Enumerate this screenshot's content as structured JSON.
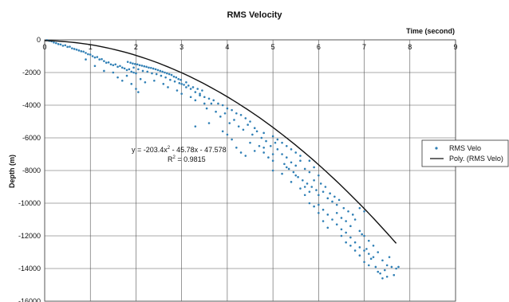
{
  "chart_data": {
    "type": "scatter",
    "title": "RMS Velocity",
    "xlabel": "Time (second)",
    "ylabel": "Depth (m)",
    "xlim": [
      0,
      9
    ],
    "ylim": [
      -16000,
      0
    ],
    "x_ticks": [
      0,
      1,
      2,
      3,
      4,
      5,
      6,
      7,
      8,
      9
    ],
    "y_ticks": [
      0,
      -2000,
      -4000,
      -6000,
      -8000,
      -10000,
      -12000,
      -14000,
      -16000
    ],
    "x_axis_position": "top",
    "grid": true,
    "legend_position": "right",
    "annotation": {
      "equation_prefix": "y = -203.4x",
      "equation_exp": "2",
      "equation_suffix": " - 45.78x - 47.578",
      "r2_prefix": "R",
      "r2_exp": "2",
      "r2_suffix": " = 0.9815"
    },
    "series": [
      {
        "name": "RMS Velo",
        "kind": "scatter",
        "color": "#2f7fb5",
        "points": [
          [
            0.05,
            -20
          ],
          [
            0.1,
            -60
          ],
          [
            0.15,
            -90
          ],
          [
            0.2,
            -160
          ],
          [
            0.25,
            -200
          ],
          [
            0.3,
            -260
          ],
          [
            0.35,
            -280
          ],
          [
            0.4,
            -360
          ],
          [
            0.45,
            -330
          ],
          [
            0.5,
            -430
          ],
          [
            0.55,
            -420
          ],
          [
            0.6,
            -520
          ],
          [
            0.65,
            -560
          ],
          [
            0.7,
            -600
          ],
          [
            0.75,
            -650
          ],
          [
            0.8,
            -700
          ],
          [
            0.85,
            -720
          ],
          [
            0.9,
            -800
          ],
          [
            0.95,
            -880
          ],
          [
            1.0,
            -900
          ],
          [
            1.05,
            -1000
          ],
          [
            1.1,
            -1080
          ],
          [
            1.15,
            -1050
          ],
          [
            1.2,
            -1200
          ],
          [
            1.25,
            -1180
          ],
          [
            1.3,
            -1300
          ],
          [
            1.35,
            -1400
          ],
          [
            1.4,
            -1380
          ],
          [
            1.45,
            -1500
          ],
          [
            1.5,
            -1550
          ],
          [
            1.55,
            -1500
          ],
          [
            1.6,
            -1650
          ],
          [
            1.65,
            -1600
          ],
          [
            1.7,
            -1700
          ],
          [
            1.75,
            -1750
          ],
          [
            1.8,
            -1850
          ],
          [
            1.85,
            -1800
          ],
          [
            1.9,
            -1950
          ],
          [
            1.95,
            -2000
          ],
          [
            2.0,
            -2050
          ],
          [
            1.82,
            -1350
          ],
          [
            1.88,
            -1400
          ],
          [
            1.93,
            -1450
          ],
          [
            1.98,
            -1480
          ],
          [
            2.03,
            -1500
          ],
          [
            2.08,
            -1550
          ],
          [
            2.13,
            -1580
          ],
          [
            2.18,
            -1620
          ],
          [
            2.23,
            -1650
          ],
          [
            2.28,
            -1700
          ],
          [
            2.33,
            -1720
          ],
          [
            2.38,
            -1760
          ],
          [
            2.43,
            -1800
          ],
          [
            2.48,
            -1850
          ],
          [
            2.53,
            -1900
          ],
          [
            2.58,
            -1950
          ],
          [
            2.63,
            -2000
          ],
          [
            2.68,
            -2050
          ],
          [
            2.73,
            -2100
          ],
          [
            2.78,
            -2150
          ],
          [
            2.83,
            -2250
          ],
          [
            2.88,
            -2300
          ],
          [
            2.93,
            -2400
          ],
          [
            2.98,
            -2450
          ],
          [
            1.95,
            -1700
          ],
          [
            2.05,
            -1800
          ],
          [
            2.15,
            -1900
          ],
          [
            2.25,
            -1950
          ],
          [
            2.35,
            -2050
          ],
          [
            2.45,
            -2100
          ],
          [
            2.55,
            -2200
          ],
          [
            2.65,
            -2300
          ],
          [
            2.75,
            -2450
          ],
          [
            2.85,
            -2550
          ],
          [
            2.95,
            -2650
          ],
          [
            3.05,
            -2750
          ],
          [
            3.15,
            -2800
          ],
          [
            3.25,
            -2900
          ],
          [
            3.35,
            -3000
          ],
          [
            3.45,
            -3100
          ],
          [
            1.6,
            -2300
          ],
          [
            1.7,
            -2500
          ],
          [
            1.9,
            -2700
          ],
          [
            2.0,
            -3000
          ],
          [
            2.1,
            -2400
          ],
          [
            2.2,
            -2600
          ],
          [
            2.4,
            -2500
          ],
          [
            2.6,
            -2700
          ],
          [
            2.7,
            -2900
          ],
          [
            2.9,
            -3100
          ],
          [
            3.0,
            -3300
          ],
          [
            3.1,
            -2600
          ],
          [
            3.2,
            -3500
          ],
          [
            3.3,
            -3700
          ],
          [
            3.4,
            -3300
          ],
          [
            3.5,
            -3900
          ],
          [
            1.3,
            -1900
          ],
          [
            1.5,
            -2000
          ],
          [
            1.1,
            -1600
          ],
          [
            0.9,
            -1200
          ],
          [
            1.8,
            -2200
          ],
          [
            2.05,
            -3200
          ],
          [
            3.0,
            -2700
          ],
          [
            3.1,
            -2900
          ],
          [
            3.2,
            -3000
          ],
          [
            3.3,
            -3200
          ],
          [
            3.4,
            -3400
          ],
          [
            3.5,
            -3500
          ],
          [
            3.6,
            -3600
          ],
          [
            3.7,
            -3700
          ],
          [
            3.8,
            -3900
          ],
          [
            3.9,
            -4000
          ],
          [
            4.0,
            -4200
          ],
          [
            4.1,
            -4300
          ],
          [
            4.2,
            -4500
          ],
          [
            4.3,
            -4600
          ],
          [
            4.4,
            -4800
          ],
          [
            4.5,
            -5000
          ],
          [
            3.55,
            -4200
          ],
          [
            3.65,
            -3900
          ],
          [
            3.75,
            -4400
          ],
          [
            3.85,
            -4700
          ],
          [
            3.95,
            -4500
          ],
          [
            4.05,
            -5100
          ],
          [
            4.15,
            -4900
          ],
          [
            4.25,
            -5300
          ],
          [
            4.35,
            -5500
          ],
          [
            4.45,
            -5200
          ],
          [
            4.55,
            -5800
          ],
          [
            4.65,
            -5600
          ],
          [
            4.75,
            -6000
          ],
          [
            4.85,
            -6200
          ],
          [
            4.95,
            -6500
          ],
          [
            5.05,
            -6300
          ],
          [
            3.3,
            -5300
          ],
          [
            3.6,
            -5100
          ],
          [
            3.9,
            -5600
          ],
          [
            4.1,
            -6100
          ],
          [
            4.2,
            -6600
          ],
          [
            4.3,
            -6900
          ],
          [
            4.4,
            -7100
          ],
          [
            4.6,
            -6800
          ],
          [
            4.0,
            -5800
          ],
          [
            4.5,
            -6300
          ],
          [
            4.7,
            -6500
          ],
          [
            4.8,
            -6900
          ],
          [
            4.9,
            -7200
          ],
          [
            5.0,
            -7400
          ],
          [
            5.1,
            -6700
          ],
          [
            5.2,
            -7000
          ],
          [
            4.6,
            -5400
          ],
          [
            4.8,
            -5700
          ],
          [
            5.0,
            -5900
          ],
          [
            5.1,
            -6100
          ],
          [
            5.2,
            -6300
          ],
          [
            5.3,
            -6500
          ],
          [
            5.4,
            -6700
          ],
          [
            5.5,
            -6900
          ],
          [
            5.3,
            -7200
          ],
          [
            5.4,
            -7500
          ],
          [
            5.5,
            -7700
          ],
          [
            5.6,
            -7400
          ],
          [
            5.7,
            -7900
          ],
          [
            5.8,
            -8100
          ],
          [
            5.9,
            -7800
          ],
          [
            6.0,
            -8300
          ],
          [
            5.25,
            -7600
          ],
          [
            5.35,
            -7900
          ],
          [
            5.45,
            -8100
          ],
          [
            5.55,
            -8400
          ],
          [
            5.65,
            -8600
          ],
          [
            5.75,
            -8800
          ],
          [
            5.85,
            -9000
          ],
          [
            5.95,
            -9200
          ],
          [
            5.6,
            -7100
          ],
          [
            5.8,
            -7400
          ],
          [
            5.9,
            -8600
          ],
          [
            6.0,
            -9500
          ],
          [
            6.1,
            -9300
          ],
          [
            6.2,
            -9700
          ],
          [
            6.3,
            -9900
          ],
          [
            6.4,
            -10100
          ],
          [
            6.05,
            -8800
          ],
          [
            6.15,
            -9000
          ],
          [
            6.25,
            -9400
          ],
          [
            6.35,
            -9600
          ],
          [
            6.45,
            -9800
          ],
          [
            6.55,
            -10300
          ],
          [
            6.65,
            -10500
          ],
          [
            6.75,
            -10700
          ],
          [
            6.0,
            -10100
          ],
          [
            6.1,
            -10400
          ],
          [
            6.2,
            -10700
          ],
          [
            6.3,
            -11000
          ],
          [
            6.4,
            -11300
          ],
          [
            6.5,
            -11600
          ],
          [
            6.6,
            -11800
          ],
          [
            6.7,
            -12100
          ],
          [
            6.5,
            -10900
          ],
          [
            6.6,
            -11100
          ],
          [
            6.7,
            -11400
          ],
          [
            6.8,
            -11000
          ],
          [
            6.9,
            -11700
          ],
          [
            7.0,
            -12000
          ],
          [
            7.1,
            -12300
          ],
          [
            7.2,
            -12600
          ],
          [
            6.8,
            -12400
          ],
          [
            6.9,
            -12700
          ],
          [
            7.0,
            -12900
          ],
          [
            7.1,
            -13100
          ],
          [
            7.2,
            -13300
          ],
          [
            7.3,
            -13000
          ],
          [
            7.4,
            -13500
          ],
          [
            7.5,
            -13800
          ],
          [
            6.9,
            -10300
          ],
          [
            7.0,
            -10500
          ],
          [
            6.95,
            -11900
          ],
          [
            7.05,
            -12800
          ],
          [
            7.15,
            -13400
          ],
          [
            7.25,
            -13900
          ],
          [
            7.35,
            -14300
          ],
          [
            7.45,
            -14100
          ],
          [
            7.55,
            -13300
          ],
          [
            7.6,
            -13900
          ],
          [
            7.65,
            -14400
          ],
          [
            7.7,
            -14000
          ],
          [
            7.75,
            -13900
          ],
          [
            7.3,
            -14200
          ],
          [
            7.4,
            -14600
          ],
          [
            7.5,
            -14500
          ],
          [
            5.0,
            -8000
          ],
          [
            5.2,
            -8200
          ],
          [
            5.4,
            -8700
          ],
          [
            5.6,
            -9100
          ],
          [
            5.7,
            -9500
          ],
          [
            5.8,
            -10000
          ],
          [
            5.9,
            -10200
          ],
          [
            6.0,
            -10600
          ],
          [
            4.8,
            -6600
          ],
          [
            5.0,
            -7000
          ],
          [
            5.3,
            -7800
          ],
          [
            5.5,
            -8300
          ],
          [
            5.7,
            -9000
          ],
          [
            5.8,
            -9300
          ],
          [
            6.1,
            -11100
          ],
          [
            6.2,
            -11500
          ],
          [
            6.4,
            -10600
          ],
          [
            6.5,
            -12000
          ],
          [
            6.6,
            -12400
          ],
          [
            6.7,
            -12600
          ],
          [
            6.8,
            -12900
          ],
          [
            6.9,
            -13200
          ],
          [
            7.0,
            -13600
          ],
          [
            7.1,
            -13800
          ]
        ]
      },
      {
        "name": "Poly. (RMS Velo)",
        "kind": "line",
        "color": "#111111",
        "fit_coefficients": [
          -203.4,
          -45.78,
          -47.578
        ],
        "x_range": [
          0,
          7.7
        ]
      }
    ]
  }
}
